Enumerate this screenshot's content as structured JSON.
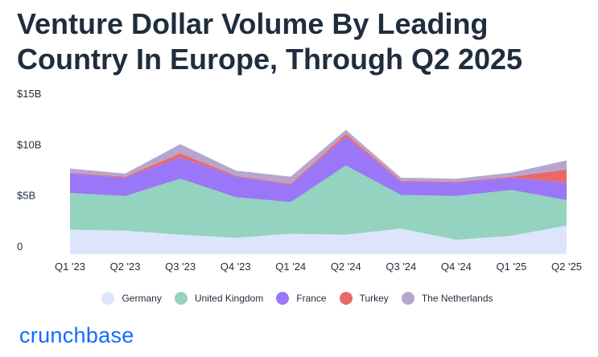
{
  "title": "Venture Dollar Volume By Leading Country In Europe, Through Q2 2025",
  "brand": "crunchbase",
  "chart_data": {
    "type": "area",
    "stacked": true,
    "title": "Venture Dollar Volume By Leading Country In Europe, Through Q2 2025",
    "xlabel": "",
    "ylabel": "",
    "categories": [
      "Q1 '23",
      "Q2 '23",
      "Q3 '23",
      "Q4 '23",
      "Q1 '24",
      "Q2 '24",
      "Q3 '24",
      "Q4 '24",
      "Q1 '25",
      "Q2 '25"
    ],
    "yticks": [
      {
        "value": 15,
        "label": "$15B"
      },
      {
        "value": 10,
        "label": "$10B"
      },
      {
        "value": 5,
        "label": "$5B"
      },
      {
        "value": 0,
        "label": "0"
      }
    ],
    "ylim": [
      0,
      15
    ],
    "legend_position": "bottom",
    "series": [
      {
        "name": "Germany",
        "color": "#dde5fc",
        "values": [
          2.4,
          2.3,
          1.9,
          1.6,
          2.0,
          1.9,
          2.5,
          1.4,
          1.8,
          2.8
        ]
      },
      {
        "name": "United Kingdom",
        "color": "#93d3bf",
        "values": [
          3.6,
          3.4,
          5.5,
          4.0,
          3.1,
          6.8,
          3.3,
          4.3,
          4.5,
          2.5
        ]
      },
      {
        "name": "France",
        "color": "#9977f8",
        "values": [
          1.9,
          1.8,
          2.1,
          2.0,
          1.7,
          2.8,
          1.3,
          1.3,
          1.2,
          1.7
        ]
      },
      {
        "name": "Turkey",
        "color": "#e76a6b",
        "values": [
          0.1,
          0.1,
          0.4,
          0.1,
          0.1,
          0.3,
          0.1,
          0.1,
          0.1,
          1.3
        ]
      },
      {
        "name": "The Netherlands",
        "color": "#b6a6cf",
        "values": [
          0.4,
          0.3,
          0.9,
          0.5,
          0.7,
          0.4,
          0.3,
          0.3,
          0.4,
          0.9
        ]
      }
    ]
  }
}
